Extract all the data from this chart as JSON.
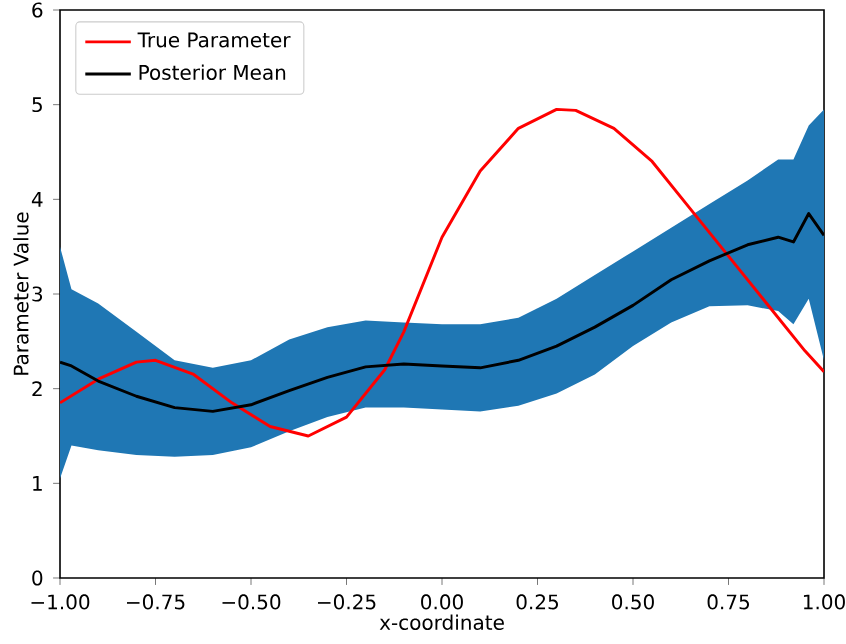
{
  "chart_data": {
    "type": "line",
    "xlabel": "x-coordinate",
    "ylabel": "Parameter Value",
    "xlim": [
      -1,
      1
    ],
    "ylim": [
      0,
      6
    ],
    "xticks": [
      {
        "value": -1,
        "label": "−1.00"
      },
      {
        "value": -0.75,
        "label": "−0.75"
      },
      {
        "value": -0.5,
        "label": "−0.50"
      },
      {
        "value": -0.25,
        "label": "−0.25"
      },
      {
        "value": 0,
        "label": "0.00"
      },
      {
        "value": 0.25,
        "label": "0.25"
      },
      {
        "value": 0.5,
        "label": "0.50"
      },
      {
        "value": 0.75,
        "label": "0.75"
      },
      {
        "value": 1,
        "label": "1.00"
      }
    ],
    "yticks": [
      0,
      1,
      2,
      3,
      4,
      5,
      6
    ],
    "legend": "top left",
    "grid": false,
    "marker": "none",
    "line_style": "solid",
    "series": [
      {
        "name": "True Parameter",
        "color": "#ff0000",
        "x": [
          -1,
          -0.9,
          -0.8,
          -0.75,
          -0.65,
          -0.55,
          -0.45,
          -0.35,
          -0.25,
          -0.15,
          -0.1,
          -0.05,
          0,
          0.1,
          0.2,
          0.3,
          0.35,
          0.45,
          0.55,
          0.65,
          0.75,
          0.85,
          0.95,
          1
        ],
        "values": [
          1.85,
          2.1,
          2.28,
          2.3,
          2.15,
          1.85,
          1.6,
          1.5,
          1.7,
          2.2,
          2.6,
          3.1,
          3.6,
          4.3,
          4.75,
          4.95,
          4.94,
          4.75,
          4.4,
          3.9,
          3.4,
          2.9,
          2.4,
          2.18
        ]
      },
      {
        "name": "Posterior Mean",
        "color": "#000000",
        "x": [
          -1,
          -0.97,
          -0.9,
          -0.8,
          -0.7,
          -0.6,
          -0.5,
          -0.4,
          -0.3,
          -0.2,
          -0.1,
          0,
          0.1,
          0.2,
          0.3,
          0.4,
          0.5,
          0.6,
          0.7,
          0.8,
          0.88,
          0.92,
          0.96,
          1
        ],
        "values": [
          2.28,
          2.24,
          2.08,
          1.92,
          1.8,
          1.76,
          1.83,
          1.98,
          2.12,
          2.23,
          2.26,
          2.24,
          2.22,
          2.3,
          2.45,
          2.65,
          2.88,
          3.15,
          3.35,
          3.52,
          3.6,
          3.55,
          3.85,
          3.62
        ],
        "upper": [
          3.5,
          3.05,
          2.9,
          2.6,
          2.3,
          2.22,
          2.3,
          2.52,
          2.65,
          2.72,
          2.7,
          2.68,
          2.68,
          2.75,
          2.95,
          3.2,
          3.45,
          3.7,
          3.95,
          4.2,
          4.42,
          4.42,
          4.78,
          4.95
        ],
        "lower": [
          1.05,
          1.4,
          1.35,
          1.3,
          1.28,
          1.3,
          1.38,
          1.55,
          1.7,
          1.8,
          1.8,
          1.78,
          1.76,
          1.82,
          1.95,
          2.15,
          2.45,
          2.7,
          2.87,
          2.88,
          2.82,
          2.68,
          2.95,
          2.3
        ]
      }
    ]
  }
}
